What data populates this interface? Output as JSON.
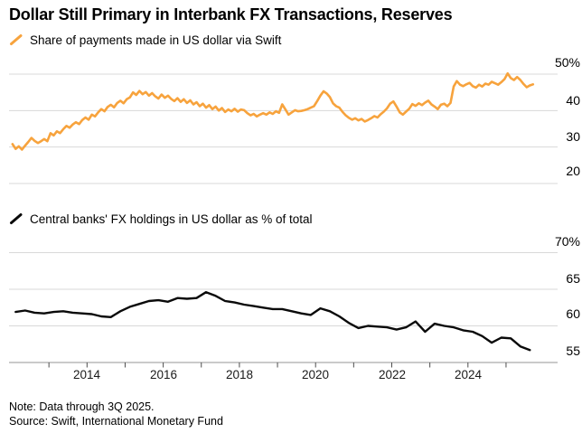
{
  "header": {
    "title": "Dollar Still Primary in Interbank FX Transactions, Reserves"
  },
  "footer": {
    "note": "Note: Data through 3Q 2025.",
    "source": "Source: Swift, International Monetary Fund"
  },
  "colors": {
    "orange": "#F7A33D",
    "black": "#0A0A0A",
    "grid": "#D8D8D8",
    "axis": "#ABABAB",
    "tick": "#4D4D4D"
  },
  "chart_data": [
    {
      "type": "line",
      "title": "Share of payments made in US dollar via Swift",
      "legend_position": "top-left",
      "grid": "horizontal",
      "ylim": [
        20,
        50
      ],
      "xlim": [
        2012,
        2026
      ],
      "y_ticks": [
        {
          "label": "50%",
          "value": 50
        },
        {
          "label": "40",
          "value": 40
        },
        {
          "label": "30",
          "value": 30
        },
        {
          "label": "20",
          "value": 20
        }
      ],
      "series": [
        {
          "name": "Share of payments made in US dollar via Swift",
          "color_key": "orange",
          "start_year": 2012,
          "points_per_year": 12,
          "values": [
            30.8,
            29.5,
            30.2,
            29.3,
            30.4,
            31.4,
            32.5,
            31.7,
            31.1,
            31.6,
            32.2,
            31.6,
            33.8,
            33.2,
            34.3,
            33.8,
            34.9,
            35.8,
            35.3,
            36.2,
            36.8,
            36.3,
            37.4,
            38.1,
            37.5,
            38.9,
            38.4,
            39.5,
            40.4,
            39.8,
            41.0,
            41.6,
            40.9,
            42.1,
            42.7,
            42.0,
            43.1,
            43.6,
            45.0,
            44.3,
            45.4,
            44.5,
            45.1,
            44.1,
            44.8,
            43.9,
            43.3,
            44.4,
            43.5,
            44.1,
            43.2,
            42.6,
            43.4,
            42.4,
            43.1,
            42.1,
            42.8,
            41.7,
            42.3,
            41.2,
            41.9,
            40.8,
            41.5,
            40.4,
            41.1,
            40.0,
            40.7,
            39.6,
            40.3,
            39.8,
            40.5,
            39.7,
            40.3,
            40.1,
            39.3,
            38.7,
            39.1,
            38.4,
            38.9,
            39.3,
            38.9,
            39.5,
            39.1,
            39.8,
            39.4,
            41.7,
            40.3,
            38.9,
            39.5,
            40.1,
            39.8,
            39.9,
            40.1,
            40.4,
            40.8,
            41.2,
            42.6,
            44.1,
            45.3,
            44.7,
            43.7,
            42.0,
            41.2,
            40.8,
            39.6,
            38.7,
            38.0,
            37.5,
            37.9,
            37.3,
            37.7,
            37.0,
            37.4,
            37.9,
            38.5,
            38.1,
            39.0,
            39.7,
            40.6,
            41.9,
            42.5,
            41.1,
            39.5,
            38.9,
            39.7,
            40.5,
            41.8,
            41.3,
            42.0,
            41.5,
            42.2,
            42.7,
            41.7,
            41.1,
            40.4,
            41.6,
            41.9,
            41.2,
            42.1,
            46.6,
            48.1,
            47.1,
            46.7,
            47.2,
            47.6,
            46.7,
            46.3,
            47.1,
            46.6,
            47.4,
            47.1,
            47.9,
            47.5,
            47.1,
            47.8,
            48.6,
            50.2,
            48.9,
            48.4,
            49.2,
            48.4,
            47.3,
            46.4,
            46.9,
            47.2
          ]
        }
      ]
    },
    {
      "type": "line",
      "title": "Central banks' FX holdings in US dollar as % of total",
      "legend_position": "top-left",
      "grid": "horizontal",
      "ylim": [
        55,
        70
      ],
      "xlim": [
        2012,
        2026
      ],
      "y_ticks": [
        {
          "label": "70%",
          "value": 70
        },
        {
          "label": "65",
          "value": 65
        },
        {
          "label": "60",
          "value": 60
        },
        {
          "label": "55",
          "value": 55,
          "axis": true
        }
      ],
      "x_ticks": [
        {
          "label": "2014",
          "year": 2014
        },
        {
          "label": "2016",
          "year": 2016
        },
        {
          "label": "2018",
          "year": 2018
        },
        {
          "label": "2020",
          "year": 2020
        },
        {
          "label": "2022",
          "year": 2022
        },
        {
          "label": "2024",
          "year": 2024
        }
      ],
      "series": [
        {
          "name": "Central banks' FX holdings in US dollar as % of total",
          "color_key": "black",
          "start_year": 2012,
          "points_per_year": 4,
          "values": [
            61.9,
            62.1,
            61.8,
            61.7,
            61.9,
            62.0,
            61.8,
            61.7,
            61.6,
            61.3,
            61.2,
            62.0,
            62.6,
            63.0,
            63.4,
            63.5,
            63.3,
            63.8,
            63.7,
            63.8,
            64.6,
            64.1,
            63.4,
            63.2,
            62.9,
            62.7,
            62.5,
            62.3,
            62.3,
            62.0,
            61.7,
            61.5,
            62.4,
            62.0,
            61.3,
            60.4,
            59.7,
            60.0,
            59.9,
            59.8,
            59.5,
            59.8,
            60.6,
            59.2,
            60.3,
            60.0,
            59.8,
            59.4,
            59.2,
            58.6,
            57.7,
            58.4,
            58.3,
            57.2,
            56.7
          ]
        }
      ]
    }
  ]
}
